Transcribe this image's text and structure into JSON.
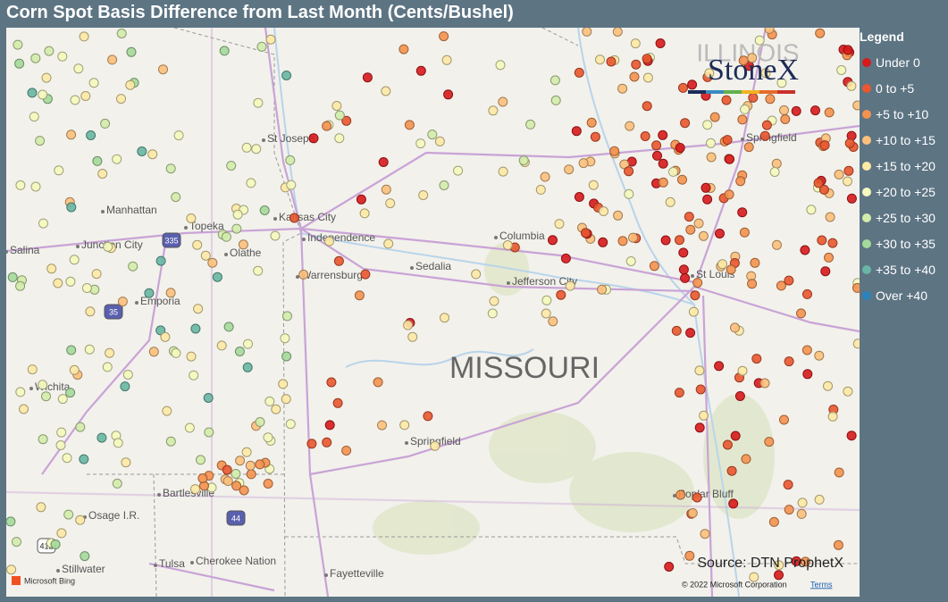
{
  "header": {
    "title": "Corn Spot Basis Difference from Last Month (Cents/Bushel)"
  },
  "legend": {
    "title": "Legend",
    "items": [
      {
        "label": "Under 0",
        "color": "#d7191c"
      },
      {
        "label": "0 to +5",
        "color": "#e9572f"
      },
      {
        "label": "+5 to +10",
        "color": "#f4924f"
      },
      {
        "label": "+10 to +15",
        "color": "#fbc07c"
      },
      {
        "label": "+15 to +20",
        "color": "#fde9a6"
      },
      {
        "label": "+20 to +25",
        "color": "#f5f9bd"
      },
      {
        "label": "+25 to +30",
        "color": "#d3ecab"
      },
      {
        "label": "+30 to +35",
        "color": "#a5d99b"
      },
      {
        "label": "+35 to +40",
        "color": "#68b6a4"
      },
      {
        "label": "Over +40",
        "color": "#2b83ba"
      }
    ]
  },
  "map": {
    "state_label": "MISSOURI",
    "state_partial": "ILLINOIS",
    "cities": [
      "St Joseph",
      "Manhattan",
      "Topeka",
      "Junction City",
      "Salina",
      "Kansas City",
      "Independence",
      "Olathe",
      "Columbia",
      "Warrensburg",
      "Sedalia",
      "Jefferson City",
      "Emporia",
      "Wichita",
      "St Louis",
      "Springfield",
      "Springfield",
      "Bartlesville",
      "Osage I.R.",
      "Poplar Bluff",
      "Stillwater",
      "Tulsa",
      "Cherokee Nation",
      "Fayetteville"
    ],
    "shields": [
      "335",
      "35",
      "44",
      "412"
    ]
  },
  "logo": "StoneX",
  "source": "Source: DTN ProphetX",
  "attribution": {
    "provider": "Microsoft Bing",
    "copyright": "© 2022 Microsoft Corporation",
    "terms": "Terms"
  }
}
